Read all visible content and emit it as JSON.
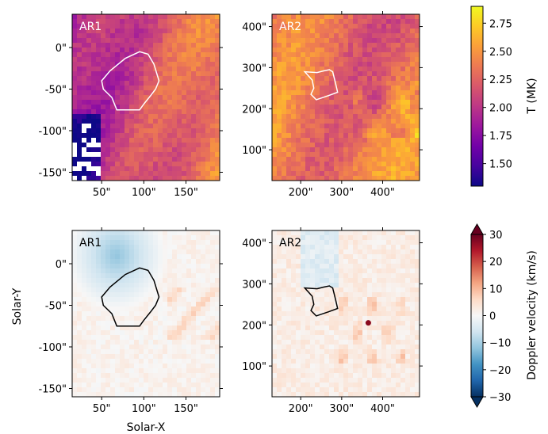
{
  "chart_data": [
    {
      "type": "heatmap",
      "panel": "temperature",
      "title": "AR1",
      "x_ticks": [
        "50\"",
        "100\"",
        "150\""
      ],
      "x_tick_values": [
        50,
        100,
        150
      ],
      "xlim": [
        15,
        190
      ],
      "y_ticks": [
        "0\"",
        "-50\"",
        "-100\"",
        "-150\""
      ],
      "y_tick_values": [
        0,
        -50,
        -100,
        -150
      ],
      "ylim": [
        -160,
        40
      ],
      "region_outline": [
        [
          68,
          -75
        ],
        [
          62,
          -60
        ],
        [
          52,
          -50
        ],
        [
          50,
          -40
        ],
        [
          60,
          -28
        ],
        [
          78,
          -13
        ],
        [
          95,
          -5
        ],
        [
          105,
          -8
        ],
        [
          112,
          -20
        ],
        [
          118,
          -40
        ],
        [
          114,
          -50
        ],
        [
          108,
          -58
        ],
        [
          100,
          -68
        ],
        [
          95,
          -75
        ]
      ]
    },
    {
      "type": "heatmap",
      "panel": "temperature",
      "title": "AR2",
      "x_ticks": [
        "200\"",
        "300\"",
        "400\""
      ],
      "x_tick_values": [
        200,
        300,
        400
      ],
      "xlim": [
        130,
        490
      ],
      "y_ticks": [
        "100\"",
        "200\"",
        "300\"",
        "400\""
      ],
      "y_tick_values": [
        100,
        200,
        300,
        400
      ],
      "ylim": [
        25,
        430
      ],
      "region_outline": [
        [
          210,
          290
        ],
        [
          228,
          270
        ],
        [
          232,
          250
        ],
        [
          225,
          235
        ],
        [
          238,
          222
        ],
        [
          268,
          232
        ],
        [
          290,
          240
        ],
        [
          285,
          262
        ],
        [
          278,
          290
        ],
        [
          270,
          295
        ],
        [
          255,
          292
        ],
        [
          240,
          288
        ]
      ]
    },
    {
      "type": "heatmap",
      "panel": "doppler",
      "title": "AR1",
      "x_ticks": [
        "50\"",
        "100\"",
        "150\""
      ],
      "x_tick_values": [
        50,
        100,
        150
      ],
      "xlim": [
        15,
        190
      ],
      "y_ticks": [
        "0\"",
        "-50\"",
        "-100\"",
        "-150\""
      ],
      "y_tick_values": [
        0,
        -50,
        -100,
        -150
      ],
      "ylim": [
        -160,
        40
      ],
      "region_outline": [
        [
          68,
          -75
        ],
        [
          62,
          -60
        ],
        [
          52,
          -50
        ],
        [
          50,
          -40
        ],
        [
          60,
          -28
        ],
        [
          78,
          -13
        ],
        [
          95,
          -5
        ],
        [
          105,
          -8
        ],
        [
          112,
          -20
        ],
        [
          118,
          -40
        ],
        [
          114,
          -50
        ],
        [
          108,
          -58
        ],
        [
          100,
          -68
        ],
        [
          95,
          -75
        ]
      ]
    },
    {
      "type": "heatmap",
      "panel": "doppler",
      "title": "AR2",
      "x_ticks": [
        "200\"",
        "300\"",
        "400\""
      ],
      "x_tick_values": [
        200,
        300,
        400
      ],
      "xlim": [
        130,
        490
      ],
      "y_ticks": [
        "100\"",
        "200\"",
        "300\"",
        "400\""
      ],
      "y_tick_values": [
        100,
        200,
        300,
        400
      ],
      "ylim": [
        25,
        430
      ],
      "region_outline": [
        [
          210,
          290
        ],
        [
          228,
          270
        ],
        [
          232,
          250
        ],
        [
          225,
          235
        ],
        [
          238,
          222
        ],
        [
          268,
          232
        ],
        [
          290,
          240
        ],
        [
          285,
          262
        ],
        [
          278,
          290
        ],
        [
          270,
          295
        ],
        [
          255,
          292
        ],
        [
          240,
          288
        ]
      ]
    }
  ],
  "axis_labels": {
    "xlabel": "Solar-X",
    "ylabel": "Solar-Y"
  },
  "colorbars": {
    "temperature": {
      "label": "T (MK)",
      "colormap": "plasma",
      "range": [
        1.3,
        2.9
      ],
      "ticks": [
        "1.50",
        "1.75",
        "2.00",
        "2.25",
        "2.50",
        "2.75"
      ],
      "tick_values": [
        1.5,
        1.75,
        2.0,
        2.25,
        2.5,
        2.75
      ]
    },
    "doppler": {
      "label": "Doppler velocity (km/s)",
      "colormap": "RdBu_r",
      "range": [
        -30,
        30
      ],
      "extend": "both",
      "ticks": [
        "30",
        "20",
        "10",
        "0",
        "−10",
        "−20",
        "−30"
      ],
      "tick_values": [
        30,
        20,
        10,
        0,
        -10,
        -20,
        -30
      ]
    }
  },
  "colors": {
    "plasma": [
      "#0d0887",
      "#46039f",
      "#7201a8",
      "#9c179e",
      "#bd3786",
      "#d8576b",
      "#ed7953",
      "#fb9f3a",
      "#fdca26",
      "#f0f921"
    ],
    "rdbu": [
      "#053061",
      "#2166ac",
      "#4393c3",
      "#92c5de",
      "#d1e5f0",
      "#f7f7f7",
      "#fddbc7",
      "#f4a582",
      "#d6604d",
      "#b2182b",
      "#67001f"
    ]
  }
}
